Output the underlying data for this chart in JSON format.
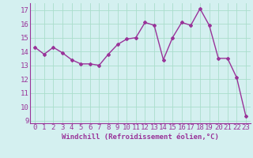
{
  "x": [
    0,
    1,
    2,
    3,
    4,
    5,
    6,
    7,
    8,
    9,
    10,
    11,
    12,
    13,
    14,
    15,
    16,
    17,
    18,
    19,
    20,
    21,
    22,
    23
  ],
  "y": [
    14.3,
    13.8,
    14.3,
    13.9,
    13.4,
    13.1,
    13.1,
    13.0,
    13.8,
    14.5,
    14.9,
    15.0,
    16.1,
    15.9,
    13.4,
    15.0,
    16.1,
    15.9,
    17.1,
    15.9,
    13.5,
    13.5,
    12.1,
    9.3
  ],
  "line_color": "#993399",
  "marker": "D",
  "marker_size": 2,
  "bg_color": "#d4f0f0",
  "grid_color": "#aaddcc",
  "xlabel": "Windchill (Refroidissement éolien,°C)",
  "xlim": [
    -0.5,
    23.5
  ],
  "ylim": [
    8.8,
    17.5
  ],
  "yticks": [
    9,
    10,
    11,
    12,
    13,
    14,
    15,
    16,
    17
  ],
  "xticks": [
    0,
    1,
    2,
    3,
    4,
    5,
    6,
    7,
    8,
    9,
    10,
    11,
    12,
    13,
    14,
    15,
    16,
    17,
    18,
    19,
    20,
    21,
    22,
    23
  ],
  "xlabel_fontsize": 6.5,
  "tick_fontsize": 6.5,
  "line_width": 1.0
}
